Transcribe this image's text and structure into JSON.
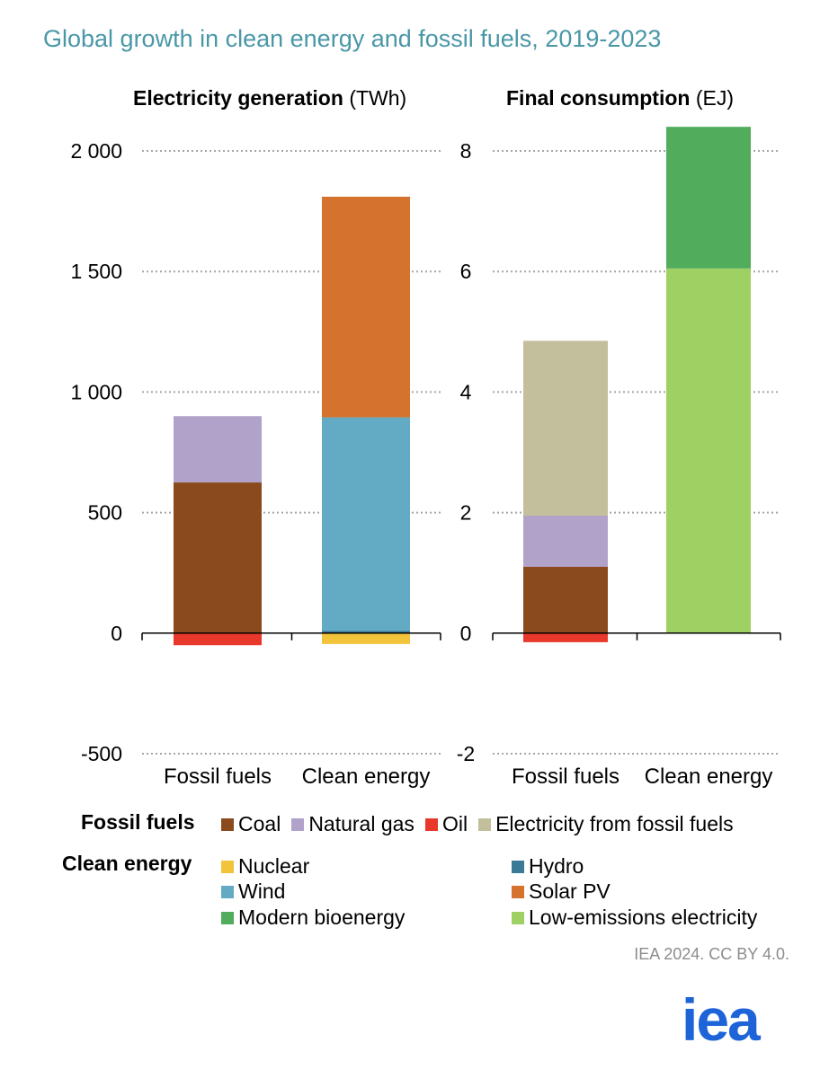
{
  "page": {
    "title": "Global growth in clean energy and fossil fuels, 2019-2023",
    "credit": "IEA 2024. CC BY 4.0.",
    "logo_text": "iea",
    "logo_color": "#1e64d8"
  },
  "colors": {
    "coal": "#8b4a1e",
    "natural_gas": "#b1a2c9",
    "oil": "#e8372b",
    "electricity_from_fossil_fuels": "#c3bf9c",
    "nuclear": "#f2c43c",
    "hydro": "#3a7a96",
    "wind": "#63abc4",
    "solar_pv": "#d4722e",
    "modern_bioenergy": "#51ad5c",
    "low_emissions_electricity": "#9fd064",
    "grid": "#a6a6a6"
  },
  "chart_data": [
    {
      "type": "bar",
      "stacked": true,
      "title_bold": "Electricity generation",
      "title_unit": "(TWh)",
      "categories": [
        "Fossil fuels",
        "Clean energy"
      ],
      "ylim": [
        -500,
        2000
      ],
      "yticks": [
        2000,
        1500,
        1000,
        500,
        0,
        -500
      ],
      "ytick_labels": [
        "2 000",
        "1 500",
        "1 000",
        "500",
        "0",
        "-500"
      ],
      "series": [
        {
          "name": "Coal",
          "color_key": "coal",
          "values": [
            625,
            0
          ]
        },
        {
          "name": "Natural gas",
          "color_key": "natural_gas",
          "values": [
            275,
            0
          ]
        },
        {
          "name": "Oil",
          "color_key": "oil",
          "values": [
            -50,
            0
          ]
        },
        {
          "name": "Nuclear",
          "color_key": "nuclear",
          "values": [
            0,
            -45
          ]
        },
        {
          "name": "Hydro",
          "color_key": "hydro",
          "values": [
            0,
            10
          ]
        },
        {
          "name": "Wind",
          "color_key": "wind",
          "values": [
            0,
            885
          ]
        },
        {
          "name": "Solar PV",
          "color_key": "solar_pv",
          "values": [
            0,
            915
          ]
        }
      ]
    },
    {
      "type": "bar",
      "stacked": true,
      "title_bold": "Final consumption",
      "title_unit": "(EJ)",
      "categories": [
        "Fossil fuels",
        "Clean energy"
      ],
      "ylim": [
        -2,
        8
      ],
      "yticks": [
        8,
        6,
        4,
        2,
        0,
        -2
      ],
      "ytick_labels": [
        "8",
        "6",
        "4",
        "2",
        "0",
        "-2"
      ],
      "series": [
        {
          "name": "Coal",
          "color_key": "coal",
          "values": [
            1.1,
            0
          ]
        },
        {
          "name": "Natural gas",
          "color_key": "natural_gas",
          "values": [
            0.85,
            0
          ]
        },
        {
          "name": "Oil",
          "color_key": "oil",
          "values": [
            -0.15,
            0
          ]
        },
        {
          "name": "Electricity from fossil fuels",
          "color_key": "electricity_from_fossil_fuels",
          "values": [
            2.9,
            0
          ]
        },
        {
          "name": "Low-emissions electricity",
          "color_key": "low_emissions_electricity",
          "values": [
            0,
            6.05
          ]
        },
        {
          "name": "Modern bioenergy",
          "color_key": "modern_bioenergy",
          "values": [
            0,
            2.35
          ]
        }
      ]
    }
  ],
  "legend": {
    "fossil_heading": "Fossil fuels",
    "clean_heading": "Clean energy",
    "fossil_items": [
      {
        "label": "Coal",
        "color_key": "coal"
      },
      {
        "label": "Natural gas",
        "color_key": "natural_gas"
      },
      {
        "label": "Oil",
        "color_key": "oil"
      },
      {
        "label": "Electricity from fossil fuels",
        "color_key": "electricity_from_fossil_fuels"
      }
    ],
    "clean_items": [
      {
        "label": "Nuclear",
        "color_key": "nuclear"
      },
      {
        "label": "Hydro",
        "color_key": "hydro"
      },
      {
        "label": "Wind",
        "color_key": "wind"
      },
      {
        "label": "Solar PV",
        "color_key": "solar_pv"
      },
      {
        "label": "Modern bioenergy",
        "color_key": "modern_bioenergy"
      },
      {
        "label": "Low-emissions electricity",
        "color_key": "low_emissions_electricity"
      }
    ]
  }
}
